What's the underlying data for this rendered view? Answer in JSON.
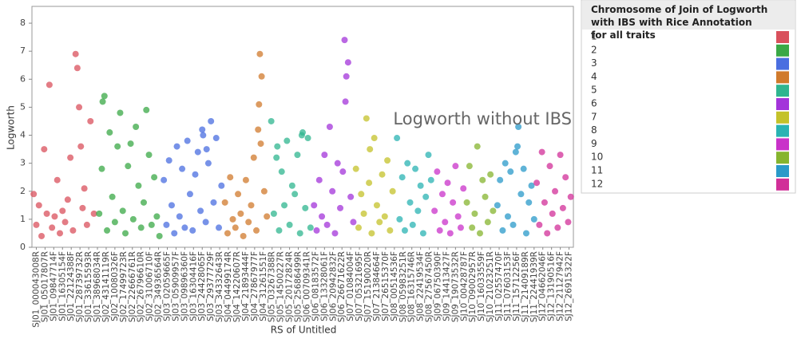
{
  "chart_data": {
    "type": "scatter",
    "ylabel": "Logworth",
    "xlabel": "RS of Untitled",
    "annotation": "Logworth without IBS",
    "legend_title": "Chromosome of Join of Logworth with IBS with Rice Annotation for all traits",
    "legend": "right",
    "ylim": [
      0,
      8.6
    ],
    "yticks": [
      0,
      1,
      2,
      3,
      4,
      5,
      6,
      7,
      8
    ],
    "xlim": [
      0,
      62
    ],
    "xticks": [
      {
        "value": 0.5,
        "label": "SJ01_000043008R"
      },
      {
        "value": 1.5,
        "label": "SJ01_05017807R"
      },
      {
        "value": 2.5,
        "label": "SJ01_09847714F"
      },
      {
        "value": 3.5,
        "label": "SJ01_16305154F"
      },
      {
        "value": 4.5,
        "label": "SJ01_22124388F"
      },
      {
        "value": 5.5,
        "label": "SJ01_28739732R"
      },
      {
        "value": 6.5,
        "label": "SJ01_33615593R"
      },
      {
        "value": 7.5,
        "label": "SJ01_38968034R"
      },
      {
        "value": 8.5,
        "label": "SJ02_43141119R"
      },
      {
        "value": 9.5,
        "label": "SJ02_10080326F"
      },
      {
        "value": 10.5,
        "label": "SJ02_17499723R"
      },
      {
        "value": 11.5,
        "label": "SJ02_22666761R"
      },
      {
        "value": 12.5,
        "label": "SJ02_26796610R"
      },
      {
        "value": 13.5,
        "label": "SJ02_31006710F"
      },
      {
        "value": 14.5,
        "label": "SJ02_34936564R"
      },
      {
        "value": 15.5,
        "label": "SJ03_02059665F"
      },
      {
        "value": 16.5,
        "label": "SJ03_05909957F"
      },
      {
        "value": 17.5,
        "label": "SJ03_09896360F"
      },
      {
        "value": 18.5,
        "label": "SJ03_16304416F"
      },
      {
        "value": 19.5,
        "label": "SJ03_24428065F"
      },
      {
        "value": 20.5,
        "label": "SJ03_29377729F"
      },
      {
        "value": 21.5,
        "label": "SJ03_34332643R"
      },
      {
        "value": 22.5,
        "label": "SJ04_04499174R"
      },
      {
        "value": 23.5,
        "label": "SJ04_14220607R"
      },
      {
        "value": 24.5,
        "label": "SJ04_21893444F"
      },
      {
        "value": 25.5,
        "label": "SJ04_27867977F"
      },
      {
        "value": 26.5,
        "label": "SJ04_31261551F"
      },
      {
        "value": 27.5,
        "label": "SJ05_03267388R"
      },
      {
        "value": 28.5,
        "label": "SJ05_14500227R"
      },
      {
        "value": 29.5,
        "label": "SJ05_20172824R"
      },
      {
        "value": 30.5,
        "label": "SJ05_25686499R"
      },
      {
        "value": 31.5,
        "label": "SJ06_00709341R"
      },
      {
        "value": 32.5,
        "label": "SJ06_08183572F"
      },
      {
        "value": 33.5,
        "label": "SJ06_13328061F"
      },
      {
        "value": 34.5,
        "label": "SJ06_20942832F"
      },
      {
        "value": 35.5,
        "label": "SJ06_26671622R"
      },
      {
        "value": 36.5,
        "label": "SJ07_01084004F"
      },
      {
        "value": 37.5,
        "label": "SJ07_05321695F"
      },
      {
        "value": 38.5,
        "label": "SJ07_15190020R"
      },
      {
        "value": 39.5,
        "label": "SJ07_21384664F"
      },
      {
        "value": 40.5,
        "label": "SJ07_26515370F"
      },
      {
        "value": 41.5,
        "label": "SJ08_00514536F"
      },
      {
        "value": 42.5,
        "label": "SJ08_05983251R"
      },
      {
        "value": 43.5,
        "label": "SJ08_16315746R"
      },
      {
        "value": 44.5,
        "label": "SJ08_22419534F"
      },
      {
        "value": 45.5,
        "label": "SJ08_27567450R"
      },
      {
        "value": 46.5,
        "label": "SJ09_06750390F"
      },
      {
        "value": 47.5,
        "label": "SJ09_14413427F"
      },
      {
        "value": 48.5,
        "label": "SJ09_19073532R"
      },
      {
        "value": 49.5,
        "label": "SJ10_00428787F"
      },
      {
        "value": 50.5,
        "label": "SJ10_09002957R"
      },
      {
        "value": 51.5,
        "label": "SJ10_16033559F"
      },
      {
        "value": 52.5,
        "label": "SJ10_21023251R"
      },
      {
        "value": 53.5,
        "label": "SJ11_02557470F"
      },
      {
        "value": 54.5,
        "label": "SJ11_07603153F"
      },
      {
        "value": 55.5,
        "label": "SJ11_15712256F"
      },
      {
        "value": 56.5,
        "label": "SJ11_21409189R"
      },
      {
        "value": 57.5,
        "label": "SJ11_22441939R"
      },
      {
        "value": 58.5,
        "label": "SJ12_04662046F"
      },
      {
        "value": 59.5,
        "label": "SJ12_13190516F"
      },
      {
        "value": 60.5,
        "label": "SJ12_21127942F"
      },
      {
        "value": 61.5,
        "label": "SJ12_26915322F"
      }
    ],
    "series": [
      {
        "name": "1",
        "color": "#d9505c",
        "x": [
          0.2,
          0.5,
          0.8,
          1.1,
          1.4,
          1.7,
          2.0,
          2.3,
          2.6,
          2.9,
          3.2,
          3.5,
          3.8,
          4.1,
          4.4,
          4.7,
          5.0,
          5.2,
          5.4,
          5.6,
          5.8,
          6.0,
          6.3,
          6.7,
          7.1
        ],
        "values": [
          1.9,
          0.8,
          1.5,
          0.4,
          3.5,
          1.2,
          5.8,
          0.7,
          1.1,
          2.4,
          0.5,
          1.3,
          0.9,
          1.7,
          3.2,
          0.6,
          6.9,
          6.4,
          5.0,
          3.6,
          1.4,
          2.1,
          0.8,
          4.5,
          1.2
        ]
      },
      {
        "name": "2",
        "color": "#3aa846",
        "x": [
          7.7,
          8.0,
          8.3,
          8.6,
          8.9,
          9.2,
          9.5,
          9.8,
          10.1,
          10.4,
          10.7,
          11.0,
          11.3,
          11.6,
          11.9,
          12.2,
          12.5,
          12.8,
          13.1,
          13.4,
          13.7,
          14.0,
          14.3,
          14.6,
          8.1
        ],
        "values": [
          1.2,
          2.8,
          5.4,
          0.6,
          4.1,
          1.8,
          0.9,
          3.6,
          4.8,
          1.3,
          0.5,
          2.9,
          3.7,
          1.0,
          4.3,
          2.2,
          0.7,
          1.6,
          4.9,
          3.3,
          0.8,
          2.5,
          1.1,
          0.4,
          5.2
        ]
      },
      {
        "name": "3",
        "color": "#4a6ee0",
        "x": [
          15.1,
          15.4,
          15.7,
          16.0,
          16.3,
          16.6,
          16.9,
          17.2,
          17.5,
          17.8,
          18.1,
          18.4,
          18.7,
          19.0,
          19.3,
          19.6,
          19.9,
          20.2,
          20.5,
          20.8,
          21.1,
          21.4,
          21.7,
          19.5,
          20.0
        ],
        "values": [
          2.4,
          0.8,
          3.1,
          1.5,
          0.5,
          3.6,
          1.1,
          2.8,
          0.7,
          3.8,
          1.9,
          0.6,
          2.6,
          3.4,
          1.3,
          4.0,
          0.9,
          3.0,
          4.5,
          1.6,
          3.9,
          0.7,
          2.2,
          4.2,
          3.5
        ]
      },
      {
        "name": "4",
        "color": "#d07a2c",
        "x": [
          22.1,
          22.4,
          22.7,
          23.0,
          23.3,
          23.6,
          23.9,
          24.2,
          24.5,
          24.8,
          25.1,
          25.4,
          25.7,
          26.0,
          26.3,
          26.6,
          26.9,
          26.1,
          25.9,
          26.2
        ],
        "values": [
          1.6,
          0.5,
          2.5,
          1.0,
          0.7,
          1.9,
          1.2,
          0.4,
          2.4,
          0.9,
          1.5,
          3.2,
          0.6,
          5.1,
          6.1,
          2.0,
          1.1,
          6.9,
          4.2,
          3.7
        ]
      },
      {
        "name": "5",
        "color": "#2fb58f",
        "x": [
          27.4,
          27.7,
          28.0,
          28.3,
          28.6,
          28.9,
          29.2,
          29.5,
          29.8,
          30.1,
          30.4,
          30.7,
          31.0,
          31.3,
          31.6,
          31.9,
          28.1,
          30.9
        ],
        "values": [
          4.5,
          1.2,
          3.2,
          0.6,
          2.7,
          1.5,
          3.8,
          0.8,
          2.2,
          1.9,
          3.3,
          0.5,
          4.1,
          1.4,
          3.9,
          0.7,
          3.6,
          4.0
        ]
      },
      {
        "name": "6",
        "color": "#a334da",
        "x": [
          32.3,
          32.6,
          32.9,
          33.2,
          33.5,
          33.8,
          34.1,
          34.4,
          34.7,
          35.0,
          35.3,
          35.6,
          35.9,
          36.2,
          36.5,
          36.8,
          35.8,
          36.0
        ],
        "values": [
          1.5,
          0.6,
          2.4,
          1.1,
          3.3,
          0.8,
          4.3,
          2.0,
          0.5,
          3.0,
          1.4,
          2.7,
          5.2,
          6.6,
          1.8,
          0.9,
          7.4,
          6.1
        ]
      },
      {
        "name": "7",
        "color": "#c4c22a",
        "x": [
          37.1,
          37.4,
          37.7,
          38.0,
          38.3,
          38.6,
          38.9,
          39.2,
          39.5,
          39.8,
          40.1,
          40.4,
          40.7,
          41.0,
          41.3,
          38.7
        ],
        "values": [
          2.8,
          0.7,
          1.9,
          1.2,
          4.6,
          2.3,
          0.5,
          3.9,
          1.5,
          0.9,
          2.6,
          1.1,
          3.1,
          0.6,
          2.0,
          3.5
        ]
      },
      {
        "name": "8",
        "color": "#29b3b3",
        "x": [
          41.8,
          42.1,
          42.4,
          42.7,
          43.0,
          43.3,
          43.6,
          43.9,
          44.2,
          44.5,
          44.8,
          45.1,
          45.4,
          45.7
        ],
        "values": [
          3.9,
          1.0,
          2.5,
          0.6,
          3.0,
          1.6,
          0.8,
          2.8,
          1.3,
          2.2,
          0.5,
          1.8,
          3.3,
          2.4
        ]
      },
      {
        "name": "9",
        "color": "#c932c9",
        "x": [
          46.1,
          46.4,
          46.7,
          47.0,
          47.3,
          47.6,
          47.9,
          48.2,
          48.5,
          48.8,
          49.1,
          49.4
        ],
        "values": [
          1.3,
          2.7,
          0.6,
          1.9,
          0.9,
          2.3,
          0.5,
          1.6,
          2.9,
          1.1,
          0.7,
          2.1
        ]
      },
      {
        "name": "10",
        "color": "#86b42f",
        "x": [
          49.8,
          50.1,
          50.4,
          50.7,
          51.0,
          51.3,
          51.6,
          51.9,
          52.2,
          52.5,
          52.8
        ],
        "values": [
          1.6,
          2.9,
          0.7,
          1.2,
          3.6,
          0.5,
          2.4,
          1.8,
          0.9,
          2.6,
          1.3
        ]
      },
      {
        "name": "11",
        "color": "#2a9ac9",
        "x": [
          53.3,
          53.6,
          53.9,
          54.2,
          54.5,
          54.8,
          55.1,
          55.4,
          55.7,
          56.0,
          56.3,
          56.6,
          56.9,
          57.2,
          57.5,
          55.6
        ],
        "values": [
          1.5,
          2.4,
          0.6,
          3.0,
          1.1,
          2.7,
          0.8,
          3.4,
          4.3,
          1.9,
          2.8,
          0.5,
          1.6,
          2.2,
          1.0,
          3.6
        ]
      },
      {
        "name": "12",
        "color": "#d12f98",
        "x": [
          57.8,
          58.1,
          58.4,
          58.7,
          59.0,
          59.3,
          59.6,
          59.9,
          60.2,
          60.5,
          60.8,
          61.1,
          61.4,
          61.7
        ],
        "values": [
          2.3,
          0.8,
          3.4,
          1.6,
          0.5,
          2.9,
          1.2,
          2.0,
          0.7,
          3.3,
          1.4,
          2.5,
          0.9,
          1.8
        ]
      }
    ]
  }
}
